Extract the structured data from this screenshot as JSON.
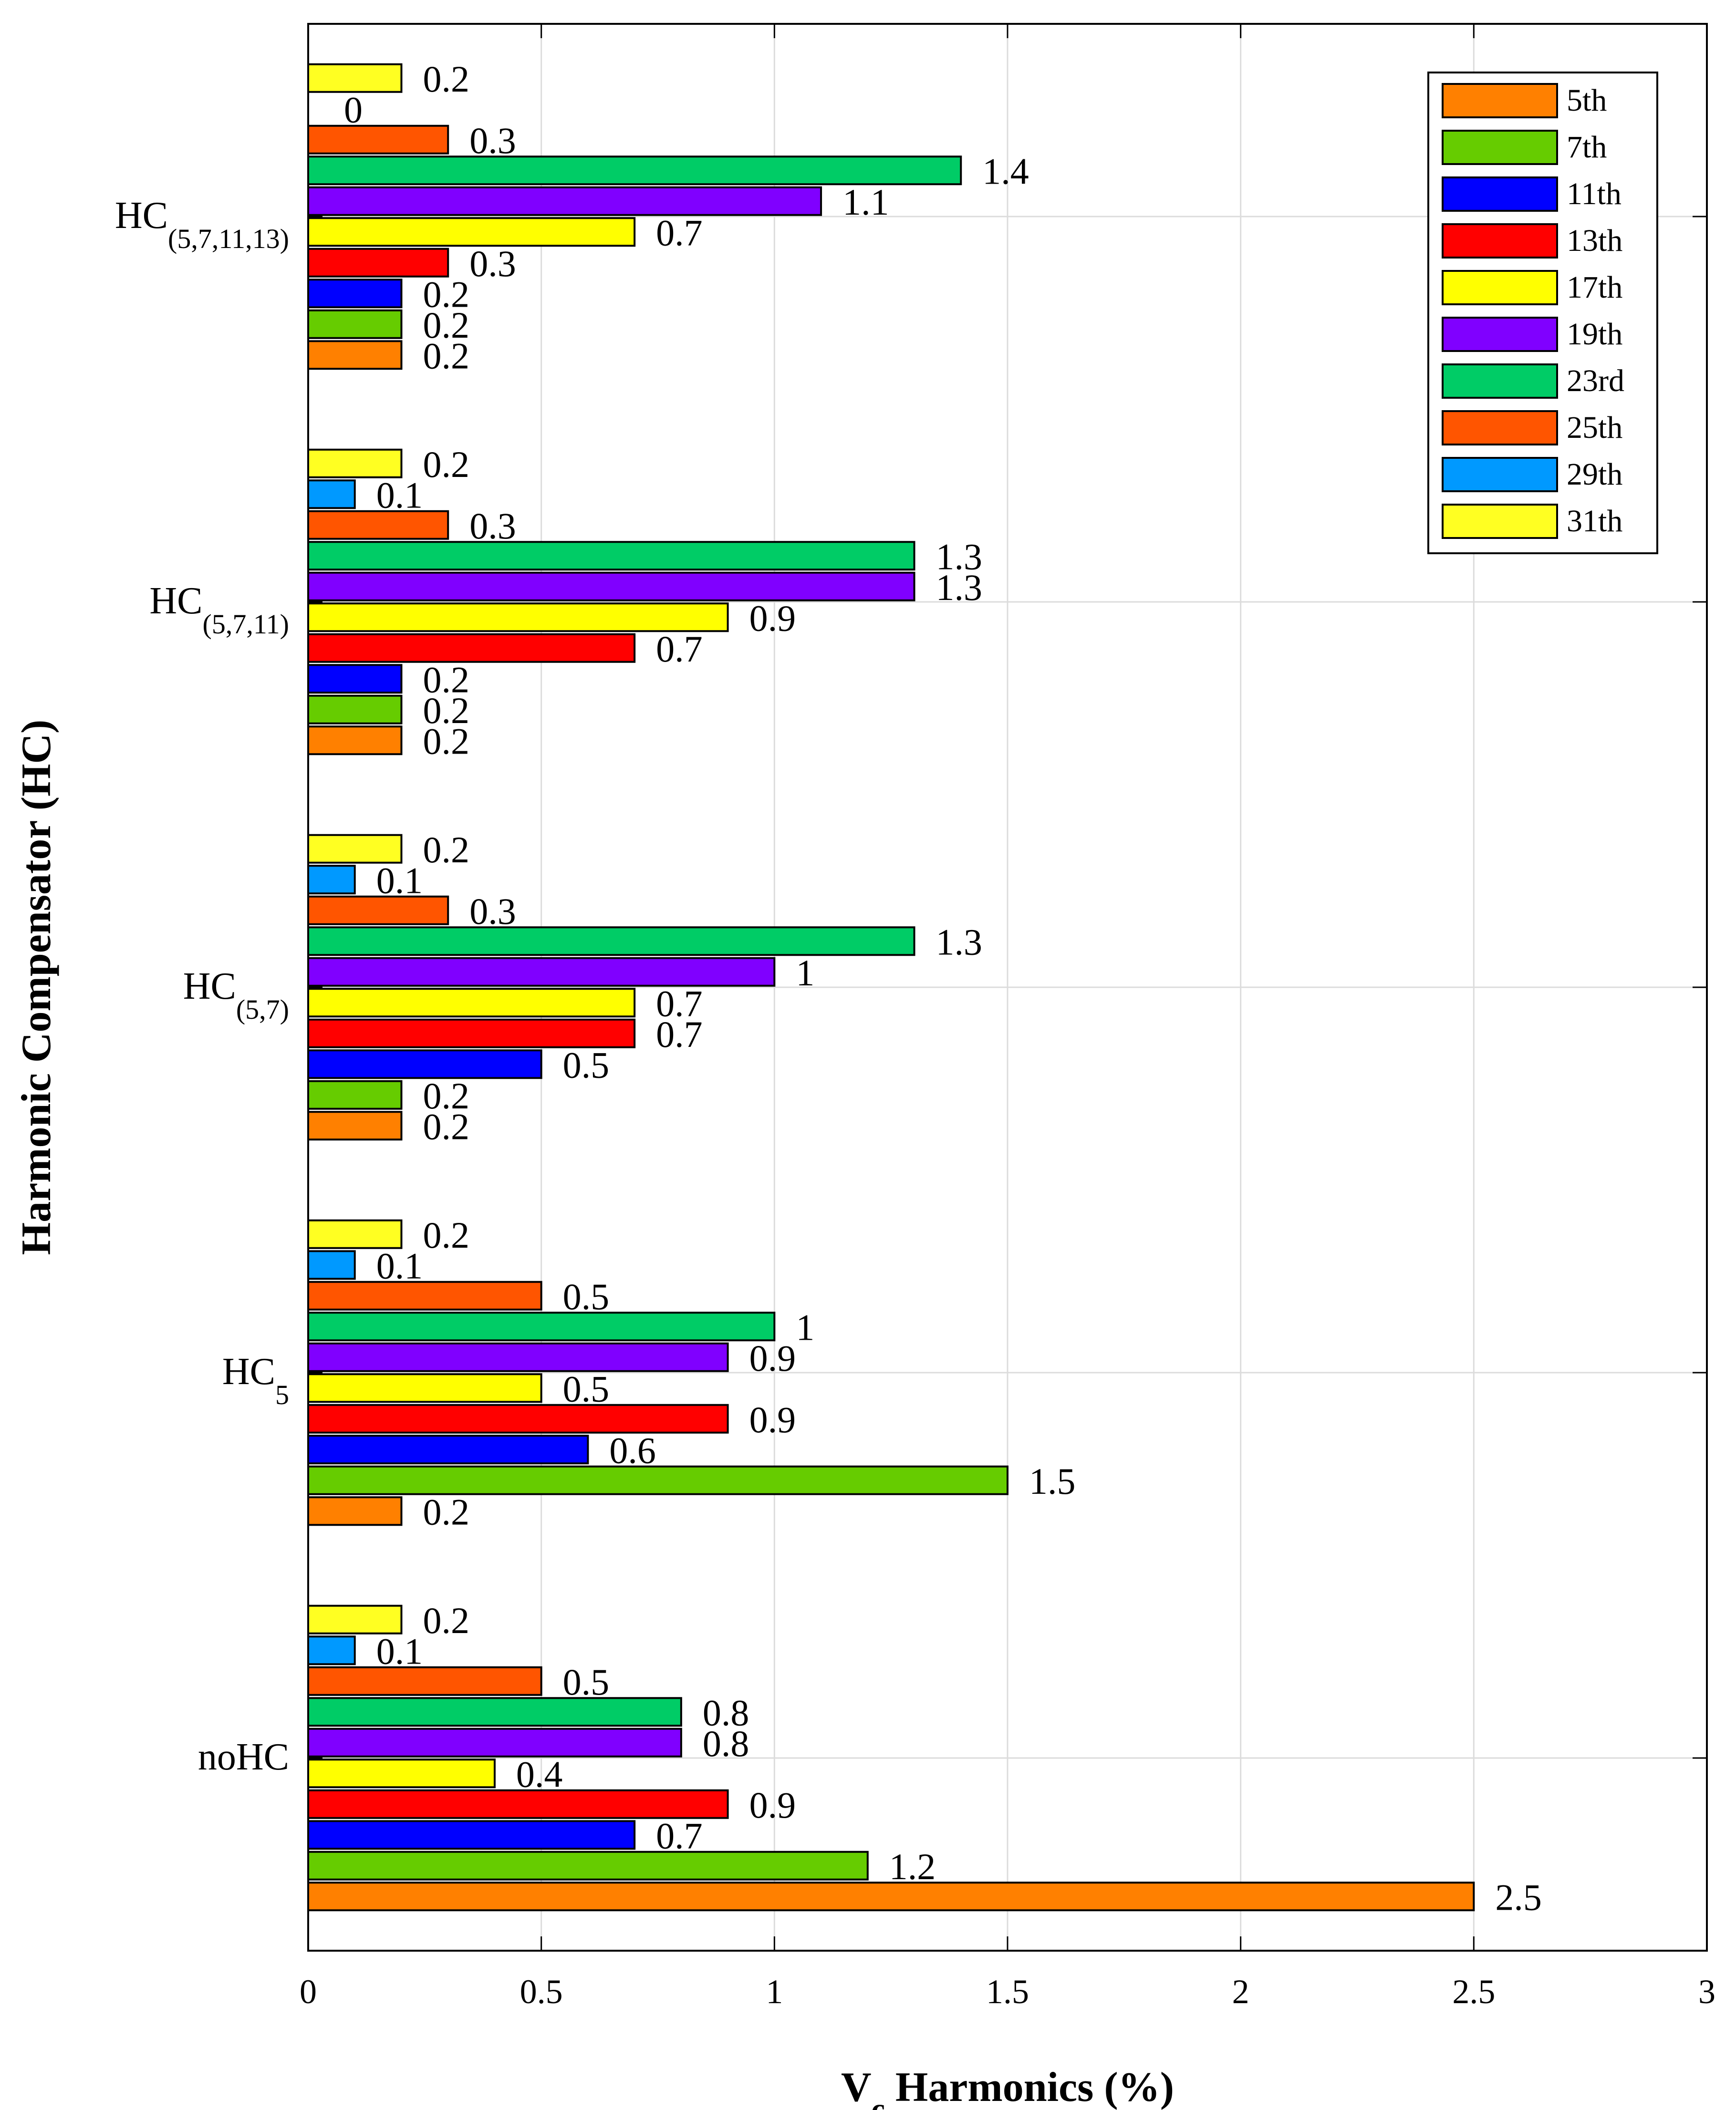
{
  "chart_data": {
    "type": "bar",
    "orientation": "horizontal",
    "xlabel": {
      "main": "V",
      "subscript": "c",
      "rest": " Harmonics (%)"
    },
    "ylabel": "Harmonic Compensator (HC)",
    "xlim": [
      0,
      3
    ],
    "xticks": [
      "0",
      "0.5",
      "1",
      "1.5",
      "2",
      "2.5",
      "3"
    ],
    "grid": true,
    "legend_position": "top-right",
    "categories": [
      {
        "main": "noHC",
        "sub": ""
      },
      {
        "main": "HC",
        "sub": "5"
      },
      {
        "main": "HC",
        "sub": "(5,7)"
      },
      {
        "main": "HC",
        "sub": "(5,7,11)"
      },
      {
        "main": "HC",
        "sub": "(5,7,11,13)"
      }
    ],
    "series": [
      {
        "name": "5th",
        "color": "#FF8000",
        "values": [
          2.5,
          0.2,
          0.2,
          0.2,
          0.2
        ],
        "labels": [
          "2.5",
          "0.2",
          "0.2",
          "0.2",
          "0.2"
        ]
      },
      {
        "name": "7th",
        "color": "#66CC00",
        "values": [
          1.2,
          1.5,
          0.2,
          0.2,
          0.2
        ],
        "labels": [
          "1.2",
          "1.5",
          "0.2",
          "0.2",
          "0.2"
        ]
      },
      {
        "name": "11th",
        "color": "#0000FF",
        "values": [
          0.7,
          0.6,
          0.5,
          0.2,
          0.2
        ],
        "labels": [
          "0.7",
          "0.6",
          "0.5",
          "0.2",
          "0.2"
        ]
      },
      {
        "name": "13th",
        "color": "#FF0000",
        "values": [
          0.9,
          0.9,
          0.7,
          0.7,
          0.3
        ],
        "labels": [
          "0.9",
          "0.9",
          "0.7",
          "0.7",
          "0.3"
        ]
      },
      {
        "name": "17th",
        "color": "#FFFF00",
        "values": [
          0.4,
          0.5,
          0.7,
          0.9,
          0.7
        ],
        "labels": [
          "0.4",
          "0.5",
          "0.7",
          "0.9",
          "0.7"
        ]
      },
      {
        "name": "19th",
        "color": "#8000FF",
        "values": [
          0.8,
          0.9,
          1.0,
          1.3,
          1.1
        ],
        "labels": [
          "0.8",
          "0.9",
          "1",
          "1.3",
          "1.1"
        ]
      },
      {
        "name": "23rd",
        "color": "#00CC66",
        "values": [
          0.8,
          1.0,
          1.3,
          1.3,
          1.4
        ],
        "labels": [
          "0.8",
          "1",
          "1.3",
          "1.3",
          "1.4"
        ]
      },
      {
        "name": "25th",
        "color": "#FF5500",
        "values": [
          0.5,
          0.5,
          0.3,
          0.3,
          0.3
        ],
        "labels": [
          "0.5",
          "0.5",
          "0.3",
          "0.3",
          "0.3"
        ]
      },
      {
        "name": "29th",
        "color": "#0099FF",
        "values": [
          0.1,
          0.1,
          0.1,
          0.1,
          0.0
        ],
        "labels": [
          "0.1",
          "0.1",
          "0.1",
          "0.1",
          "0"
        ]
      },
      {
        "name": "31th",
        "color": "#FFFF22",
        "values": [
          0.2,
          0.2,
          0.2,
          0.2,
          0.2
        ],
        "labels": [
          "0.2",
          "0.2",
          "0.2",
          "0.2",
          "0.2"
        ]
      }
    ]
  }
}
